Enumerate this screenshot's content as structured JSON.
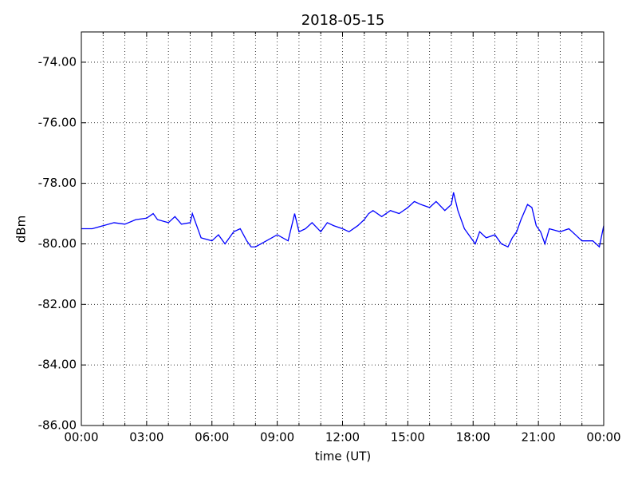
{
  "chart_data": {
    "type": "line",
    "title": "2018-05-15",
    "x_label": "time (UT)",
    "y_label": "dBm",
    "x": [
      0,
      0.5,
      1,
      1.5,
      2,
      2.5,
      3,
      3.3,
      3.5,
      4,
      4.3,
      4.6,
      5,
      5.1,
      5.3,
      5.5,
      6,
      6.3,
      6.6,
      7,
      7.3,
      7.6,
      7.8,
      8,
      8.5,
      9,
      9.5,
      9.7,
      9.8,
      10,
      10.3,
      10.6,
      11,
      11.3,
      11.6,
      12,
      12.3,
      12.7,
      13,
      13.2,
      13.4,
      13.8,
      14.2,
      14.6,
      15,
      15.3,
      15.6,
      16,
      16.3,
      16.7,
      17,
      17.1,
      17.3,
      17.6,
      17.9,
      18.1,
      18.3,
      18.6,
      19,
      19.3,
      19.6,
      19.8,
      20,
      20.2,
      20.5,
      20.7,
      20.9,
      21.1,
      21.3,
      21.5,
      22,
      22.4,
      22.7,
      23,
      23.5,
      23.8,
      24
    ],
    "series": [
      {
        "name": "dBm",
        "color": "#0000ff",
        "values": [
          -79.5,
          -79.5,
          -79.4,
          -79.3,
          -79.35,
          -79.2,
          -79.15,
          -79.0,
          -79.2,
          -79.3,
          -79.1,
          -79.35,
          -79.3,
          -79.0,
          -79.4,
          -79.8,
          -79.9,
          -79.7,
          -80.0,
          -79.6,
          -79.5,
          -79.9,
          -80.1,
          -80.1,
          -79.9,
          -79.7,
          -79.9,
          -79.3,
          -79.0,
          -79.6,
          -79.5,
          -79.3,
          -79.6,
          -79.3,
          -79.4,
          -79.5,
          -79.6,
          -79.4,
          -79.2,
          -79.0,
          -78.9,
          -79.1,
          -78.9,
          -79.0,
          -78.8,
          -78.6,
          -78.7,
          -78.8,
          -78.6,
          -78.9,
          -78.7,
          -78.3,
          -78.9,
          -79.5,
          -79.8,
          -80.0,
          -79.6,
          -79.8,
          -79.7,
          -80.0,
          -80.1,
          -79.8,
          -79.6,
          -79.2,
          -78.7,
          -78.8,
          -79.4,
          -79.6,
          -80.0,
          -79.5,
          -79.6,
          -79.5,
          -79.7,
          -79.9,
          -79.9,
          -80.1,
          -79.4
        ]
      }
    ],
    "xlim": [
      0,
      24
    ],
    "xticks": [
      {
        "value": 0,
        "label": "00:00"
      },
      {
        "value": 3,
        "label": "03:00"
      },
      {
        "value": 6,
        "label": "06:00"
      },
      {
        "value": 9,
        "label": "09:00"
      },
      {
        "value": 12,
        "label": "12:00"
      },
      {
        "value": 15,
        "label": "15:00"
      },
      {
        "value": 18,
        "label": "18:00"
      },
      {
        "value": 21,
        "label": "21:00"
      },
      {
        "value": 24,
        "label": "00:00"
      }
    ],
    "xminorticks": [
      1,
      2,
      4,
      5,
      7,
      8,
      10,
      11,
      13,
      14,
      16,
      17,
      19,
      20,
      22,
      23
    ],
    "ylim": [
      -86,
      -73
    ],
    "yticks": [
      {
        "value": -86,
        "label": "-86.00"
      },
      {
        "value": -84,
        "label": "-84.00"
      },
      {
        "value": -82,
        "label": "-82.00"
      },
      {
        "value": -80,
        "label": "-80.00"
      },
      {
        "value": -78,
        "label": "-78.00"
      },
      {
        "value": -76,
        "label": "-76.00"
      },
      {
        "value": -74,
        "label": "-74.00"
      }
    ],
    "grid": true
  }
}
